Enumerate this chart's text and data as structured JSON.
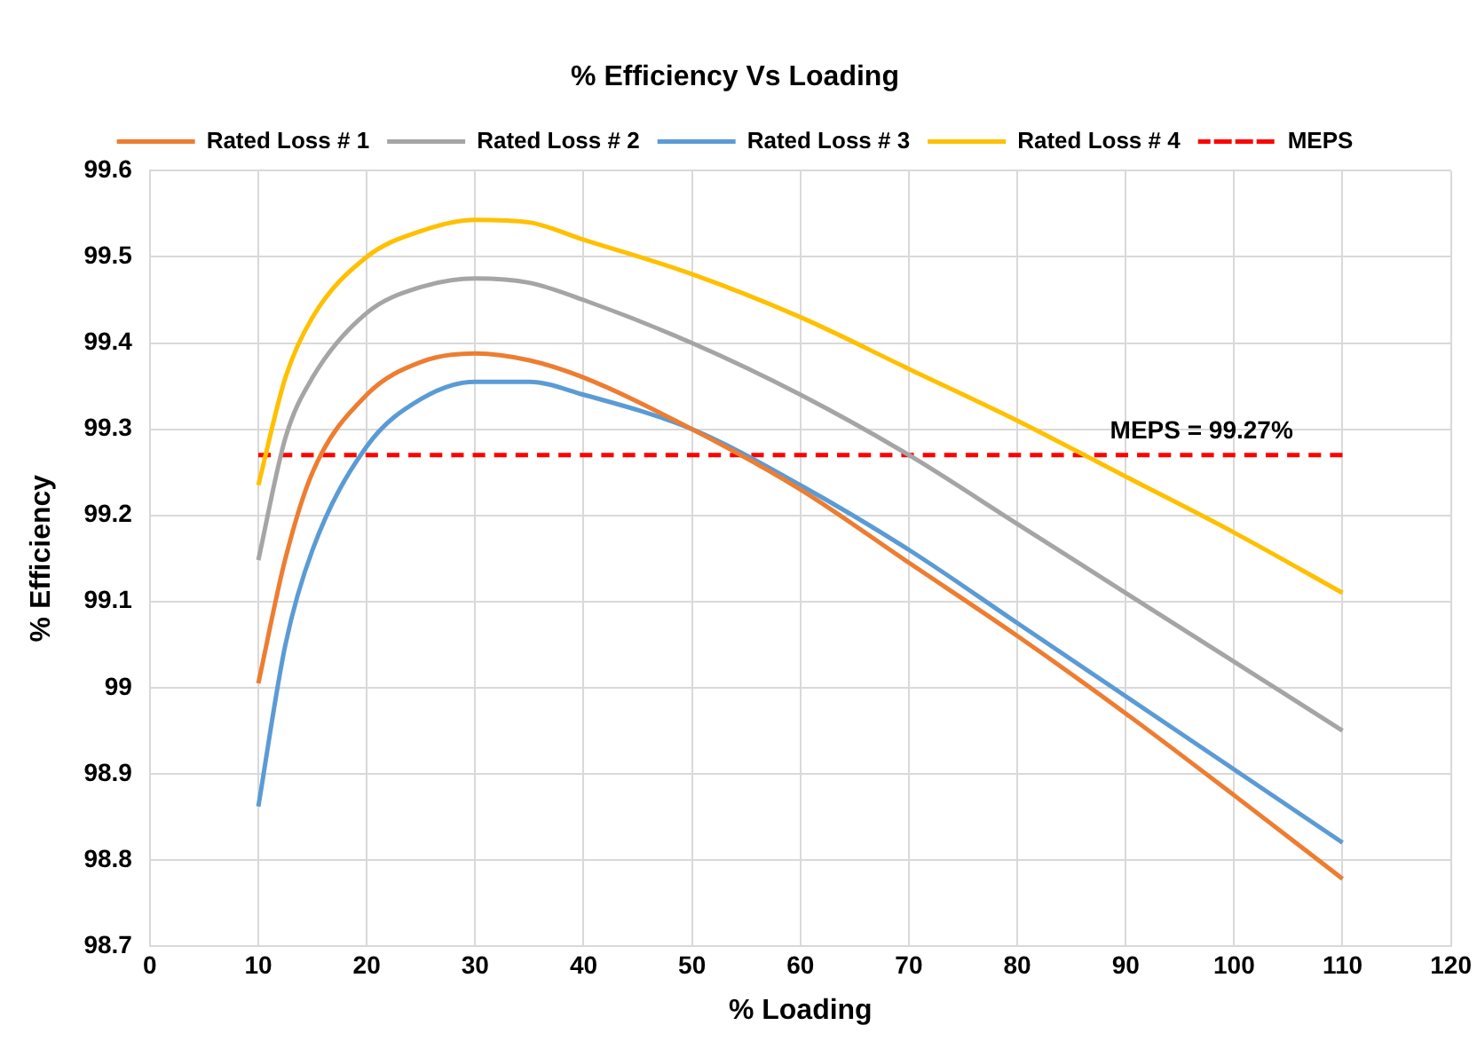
{
  "chart_data": {
    "type": "line",
    "title": "% Efficiency Vs Loading",
    "xlabel": "% Loading",
    "ylabel": "% Efficiency",
    "x": [
      10,
      12.5,
      15,
      20,
      25,
      30,
      35,
      40,
      50,
      60,
      70,
      80,
      90,
      100,
      110
    ],
    "series": [
      {
        "name": "Rated Loss # 1",
        "color": "#ed7d31",
        "values": [
          99.005,
          99.15,
          99.25,
          99.34,
          99.378,
          99.388,
          99.38,
          99.36,
          99.3,
          99.23,
          99.145,
          99.06,
          98.97,
          98.875,
          98.778
        ]
      },
      {
        "name": "Rated Loss # 2",
        "color": "#a5a5a5",
        "values": [
          99.148,
          99.29,
          99.36,
          99.435,
          99.465,
          99.475,
          99.47,
          99.45,
          99.4,
          99.34,
          99.27,
          99.19,
          99.11,
          99.03,
          98.95
        ]
      },
      {
        "name": "Rated Loss # 3",
        "color": "#5b9bd5",
        "values": [
          98.862,
          99.05,
          99.16,
          99.28,
          99.335,
          99.355,
          99.355,
          99.34,
          99.3,
          99.235,
          99.16,
          99.075,
          98.99,
          98.905,
          98.82
        ]
      },
      {
        "name": "Rated Loss # 4",
        "color": "#ffc000",
        "values": [
          99.235,
          99.36,
          99.43,
          99.5,
          99.53,
          99.543,
          99.54,
          99.52,
          99.48,
          99.43,
          99.37,
          99.31,
          99.245,
          99.18,
          99.11
        ]
      },
      {
        "name": "MEPS",
        "color": "#ff0000",
        "line_style": "dashed",
        "x": [
          10,
          110
        ],
        "values": [
          99.27,
          99.27
        ]
      }
    ],
    "annotations": [
      {
        "text": "MEPS = 99.27%",
        "x": 97,
        "y": 99.27
      }
    ],
    "xlim": [
      0,
      120
    ],
    "xticks": [
      0,
      10,
      20,
      30,
      40,
      50,
      60,
      70,
      80,
      90,
      100,
      110,
      120
    ],
    "ylim": [
      98.7,
      99.6
    ],
    "yticks": [
      {
        "value": 98.7,
        "label": "98.7"
      },
      {
        "value": 98.8,
        "label": "98.8"
      },
      {
        "value": 98.9,
        "label": "98.9"
      },
      99,
      {
        "value": 99.1,
        "label": "99.1"
      },
      {
        "value": 99.2,
        "label": "99.2"
      },
      {
        "value": 99.3,
        "label": "99.3"
      },
      {
        "value": 99.4,
        "label": "99.4"
      },
      {
        "value": 99.5,
        "label": "99.5"
      },
      {
        "value": 99.6,
        "label": "99.6"
      }
    ],
    "grid": true,
    "legend": "top",
    "marker": "none",
    "line_style": "solid"
  }
}
